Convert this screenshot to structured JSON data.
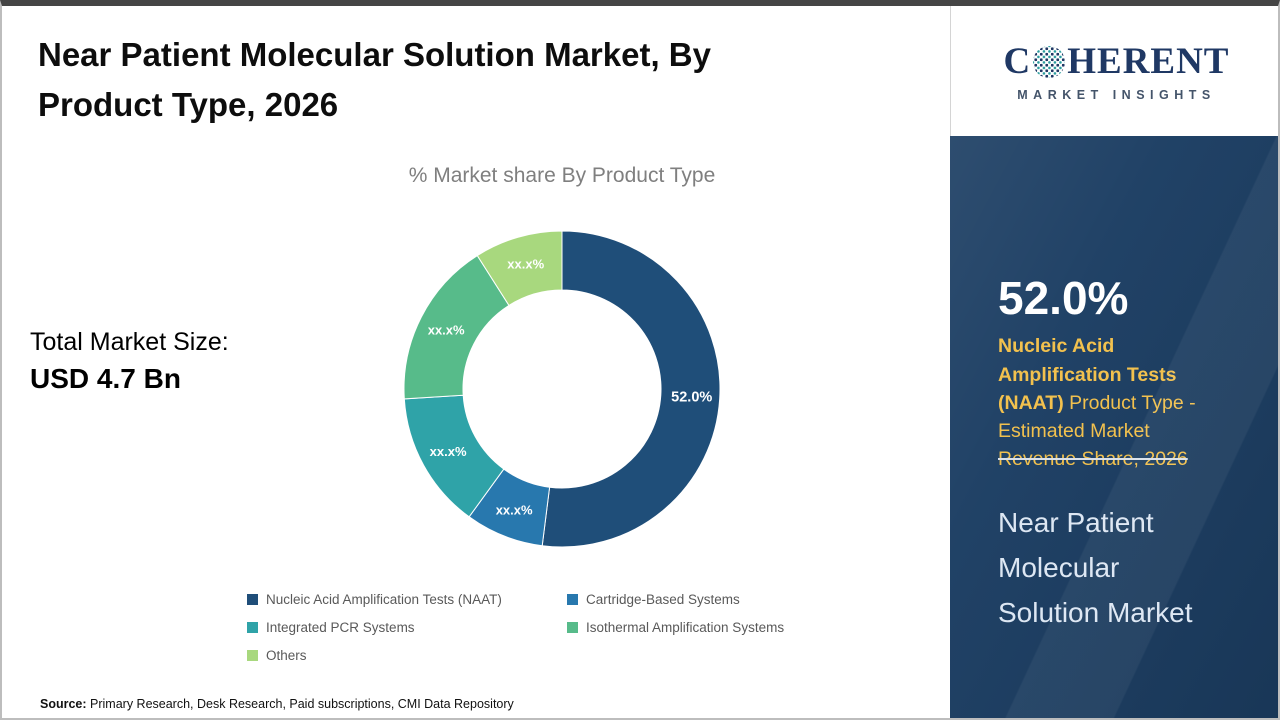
{
  "header": {
    "title": "Near Patient Molecular Solution Market, By Product Type, 2026"
  },
  "chart": {
    "subtitle": "% Market share By Product Type"
  },
  "market_size": {
    "label": "Total Market Size:",
    "value": "USD 4.7 Bn"
  },
  "source": {
    "label": "Source:",
    "text": " Primary Research, Desk Research, Paid subscriptions, CMI Data Repository"
  },
  "logo": {
    "part1": "C",
    "part2": "HERENT",
    "subtitle": "MARKET INSIGHTS"
  },
  "sidebar": {
    "headline_value": "52.0%",
    "desc_bold": "Nucleic Acid Amplification Tests (NAAT)",
    "desc_normal": " Product Type - Estimated Market ",
    "desc_struck": "Revenue Share, 2026",
    "market_name": "Near Patient Molecular Solution Market",
    "panel_color": "#1c3e63",
    "accent_color": "#f2c14e"
  },
  "chart_data": {
    "type": "pie",
    "donut": true,
    "title": "% Market share By Product Type",
    "categories": [
      "Nucleic Acid Amplification Tests (NAAT)",
      "Cartridge-Based Systems",
      "Integrated PCR Systems",
      "Isothermal Amplification Systems",
      "Others"
    ],
    "values": [
      52.0,
      8.0,
      14.0,
      17.0,
      9.0
    ],
    "labels": [
      "52.0%",
      "xx.x%",
      "xx.x%",
      "xx.x%",
      "xx.x%"
    ],
    "colors": [
      "#1f4e79",
      "#2878ae",
      "#2fa3a8",
      "#57bb8a",
      "#a8d87e"
    ],
    "legend_position": "bottom",
    "start_angle_deg": 0
  }
}
